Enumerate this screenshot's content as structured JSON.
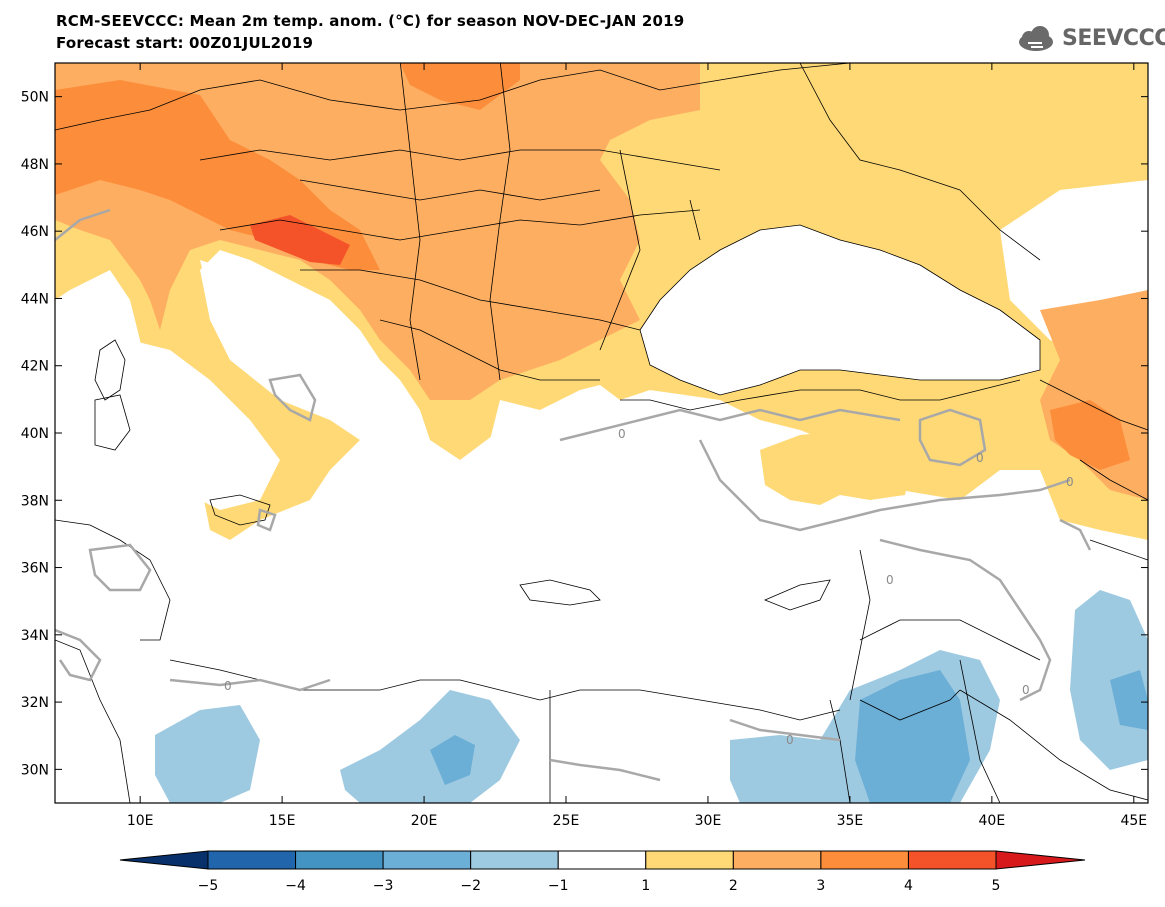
{
  "title_line1": "RCM-SEEVCCC: Mean 2m temp. anom. (°C) for season NOV-DEC-JAN 2019",
  "title_line2": "Forecast start: 00Z01JUL2019",
  "logo_text": "SEEVCCC",
  "map": {
    "lon_range": [
      7,
      45.5
    ],
    "lat_range": [
      29,
      51
    ],
    "lat_ticks": [
      "50N",
      "48N",
      "46N",
      "44N",
      "42N",
      "40N",
      "38N",
      "36N",
      "34N",
      "32N",
      "30N"
    ],
    "lat_values": [
      50,
      48,
      46,
      44,
      42,
      40,
      38,
      36,
      34,
      32,
      30
    ],
    "lon_ticks": [
      "10E",
      "15E",
      "20E",
      "25E",
      "30E",
      "35E",
      "40E",
      "45E"
    ],
    "lon_values": [
      10,
      15,
      20,
      25,
      30,
      35,
      40,
      45
    ],
    "contour_label": "0"
  },
  "colorbar": {
    "labels": [
      "−5",
      "−4",
      "−3",
      "−2",
      "−1",
      "1",
      "2",
      "3",
      "4",
      "5"
    ],
    "colors": [
      "#08306b",
      "#2166ac",
      "#4393c3",
      "#6baed6",
      "#9ecae1",
      "#ffffff",
      "#fed976",
      "#fdae61",
      "#fc8d3b",
      "#f4532a",
      "#d7191c"
    ]
  }
}
